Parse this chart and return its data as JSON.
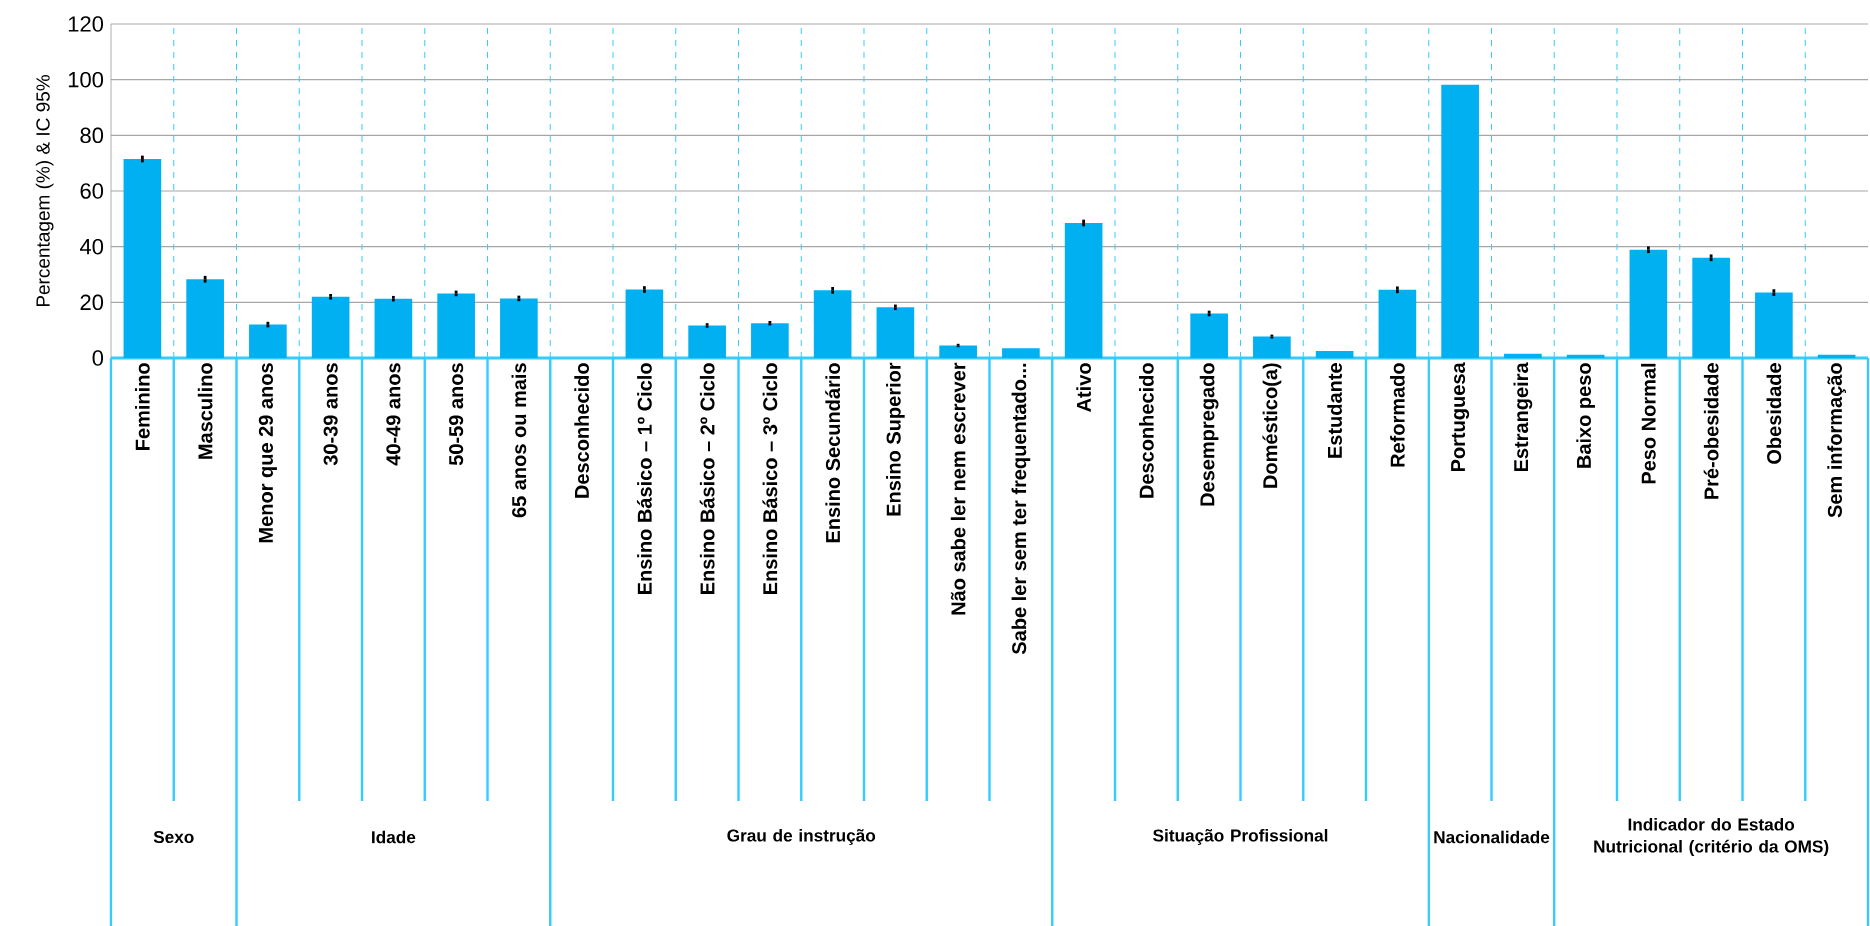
{
  "chart_data": {
    "type": "bar",
    "ylabel": "Percentagem (%) & IC 95%",
    "categories": [
      "Feminino",
      "Masculino",
      "Menor que 29 anos",
      "30-39 anos",
      "40-49 anos",
      "50-59 anos",
      "65 anos ou mais",
      "Desconhecido",
      "Ensino Básico – 1º Ciclo",
      "Ensino Básico – 2º Ciclo",
      "Ensino Básico – 3º Ciclo",
      "Ensino Secundário",
      "Ensino Superior",
      "Não sabe ler nem escrever",
      "Sabe ler sem ter frequentado...",
      "Ativo",
      "Desconhecido",
      "Desempregado",
      "Doméstico(a)",
      "Estudante",
      "Reformado",
      "Portuguesa",
      "Estrangeira",
      "Baixo peso",
      "Peso Normal",
      "Pré-obesidade",
      "Obesidade",
      "Sem informação"
    ],
    "values": [
      71.5,
      28.3,
      12,
      22,
      21.3,
      23.2,
      21.4,
      null,
      24.6,
      11.7,
      12.5,
      24.3,
      18.2,
      4.5,
      3.5,
      48.5,
      null,
      16,
      7.7,
      2.5,
      24.5,
      98.2,
      1.5,
      1.2,
      38.9,
      36,
      23.5,
      1.2
    ],
    "errors": [
      1.2,
      1.2,
      1,
      1,
      1,
      1,
      1,
      null,
      1.2,
      0.8,
      0.8,
      1.2,
      1,
      0.6,
      null,
      1.2,
      null,
      1,
      0.7,
      null,
      1.2,
      null,
      null,
      null,
      1.2,
      1.2,
      1.2,
      null
    ],
    "color": "#00b0f0",
    "ylim": [
      0,
      120
    ],
    "yticks": [
      0,
      20,
      40,
      60,
      80,
      100,
      120
    ],
    "grid": true,
    "annotations": [
      "Sexo",
      "Idade",
      "Grau de instrução",
      "Situação Profissional",
      "Nacionalidade",
      "Indicador do Estado Nutricional (critério da OMS)"
    ]
  }
}
